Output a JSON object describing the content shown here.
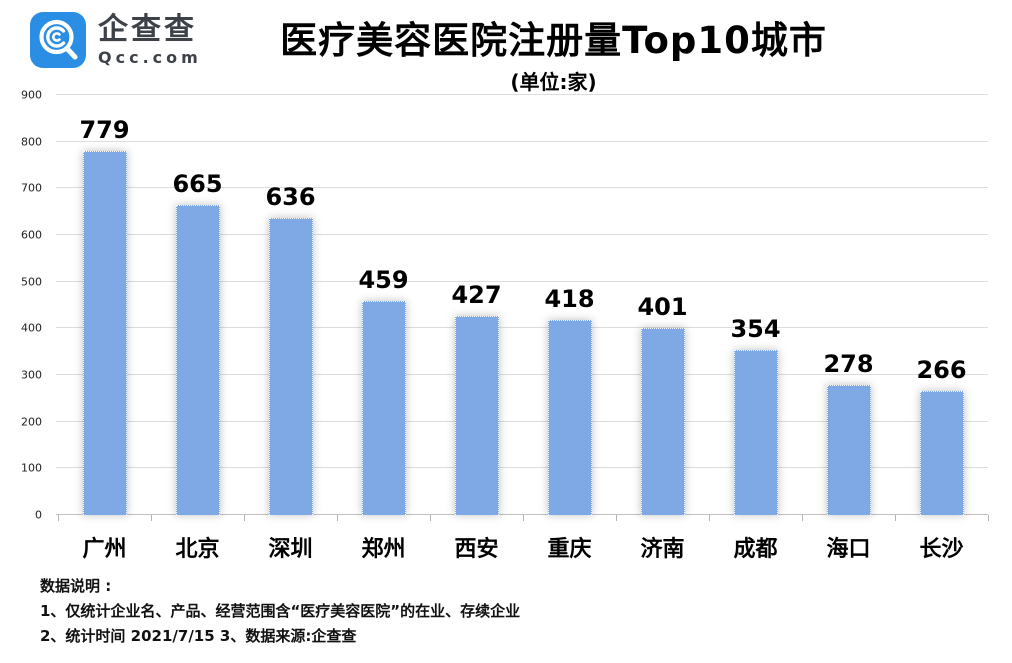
{
  "logo": {
    "name": "企查查",
    "domain": "Qcc.com"
  },
  "title": "医疗美容医院注册量Top10城市",
  "subtitle": "(单位:家)",
  "chart_data": {
    "type": "bar",
    "title": "医疗美容医院注册量Top10城市",
    "unit_label": "(单位:家)",
    "categories": [
      "广州",
      "北京",
      "深圳",
      "郑州",
      "西安",
      "重庆",
      "济南",
      "成都",
      "海口",
      "长沙"
    ],
    "values": [
      779,
      665,
      636,
      459,
      427,
      418,
      401,
      354,
      278,
      266
    ],
    "xlabel": "",
    "ylabel": "",
    "ylim": [
      0,
      900
    ],
    "yticks": [
      900,
      800,
      700,
      600,
      500,
      400,
      300,
      200,
      100,
      0
    ],
    "grid": true,
    "legend": "none",
    "bar_color": "#7ea9e4"
  },
  "footnotes": {
    "heading": "数据说明 :",
    "line1": "1、仅统计企业名、产品、经营范围含“医疗美容医院”的在业、存续企业",
    "line2": "2、统计时间 2021/7/15    3、数据来源:企查查"
  },
  "colors": {
    "bar": "#7ea9e4",
    "gridline": "#dcdcdc",
    "baseline": "#c0c0c0",
    "logo_blue": "#2a8ee5",
    "logo_text": "#3d4249",
    "label_text": "#000000"
  }
}
